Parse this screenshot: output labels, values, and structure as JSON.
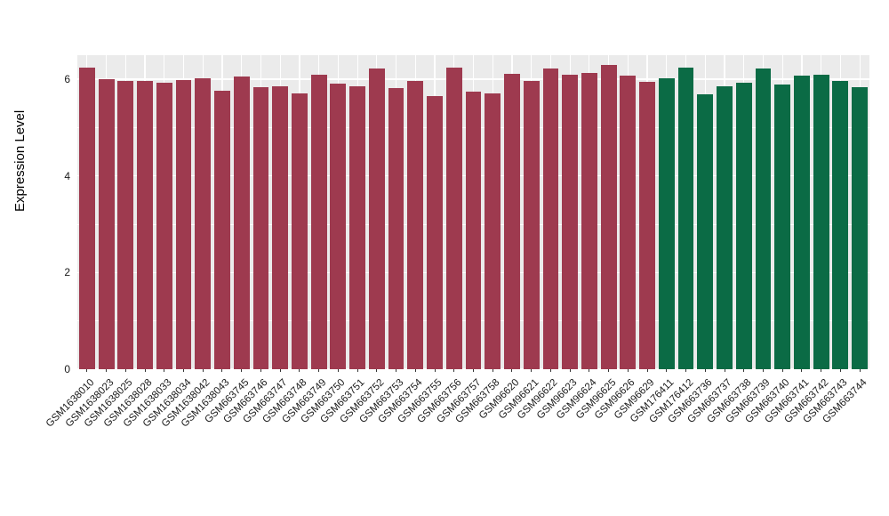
{
  "chart_data": {
    "type": "bar",
    "title": "",
    "xlabel": "",
    "ylabel": "Expression Level",
    "ylim": [
      0,
      6.5
    ],
    "yticks": [
      0,
      2,
      4,
      6
    ],
    "yticks_minor": [
      1,
      3,
      5
    ],
    "grid": true,
    "legend_position": "none",
    "panel_bg": "#ebebeb",
    "grid_color": "#ffffff",
    "group_colors": [
      "#9e3a4f",
      "#0b6b45"
    ],
    "categories": [
      "GSM1638010",
      "GSM1638023",
      "GSM1638025",
      "GSM1638028",
      "GSM1638033",
      "GSM1638034",
      "GSM1638042",
      "GSM1638043",
      "GSM663745",
      "GSM663746",
      "GSM663747",
      "GSM663748",
      "GSM663749",
      "GSM663750",
      "GSM663751",
      "GSM663752",
      "GSM663753",
      "GSM663754",
      "GSM663755",
      "GSM663756",
      "GSM663757",
      "GSM663758",
      "GSM96620",
      "GSM96621",
      "GSM96622",
      "GSM96623",
      "GSM96624",
      "GSM96625",
      "GSM96626",
      "GSM96629",
      "GSM176411",
      "GSM176412",
      "GSM663736",
      "GSM663737",
      "GSM663738",
      "GSM663739",
      "GSM663740",
      "GSM663741",
      "GSM663742",
      "GSM663743",
      "GSM663744"
    ],
    "values": [
      6.25,
      6.0,
      5.97,
      5.97,
      5.92,
      5.98,
      6.02,
      5.76,
      6.05,
      5.83,
      5.86,
      5.71,
      6.1,
      5.91,
      5.86,
      6.22,
      5.81,
      5.97,
      5.66,
      6.25,
      5.74,
      5.71,
      6.12,
      5.97,
      6.23,
      6.09,
      6.13,
      6.3,
      6.08,
      5.95,
      6.03,
      6.25,
      5.69,
      5.86,
      5.92,
      6.22,
      5.9,
      6.08,
      6.1,
      5.96,
      5.83
    ],
    "groups": [
      0,
      0,
      0,
      0,
      0,
      0,
      0,
      0,
      0,
      0,
      0,
      0,
      0,
      0,
      0,
      0,
      0,
      0,
      0,
      0,
      0,
      0,
      0,
      0,
      0,
      0,
      0,
      0,
      0,
      0,
      1,
      1,
      1,
      1,
      1,
      1,
      1,
      1,
      1,
      1,
      1
    ]
  }
}
